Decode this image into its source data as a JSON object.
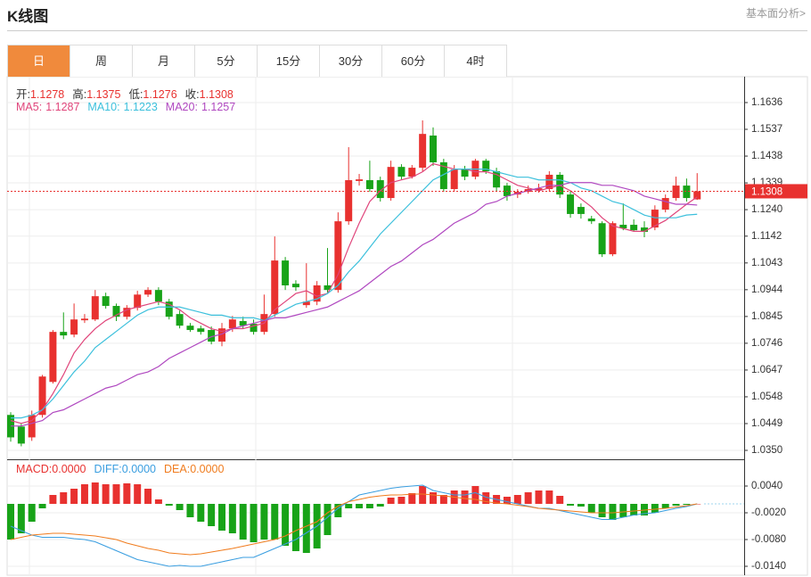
{
  "header": {
    "title": "K线图",
    "link": "基本面分析>"
  },
  "tabs": {
    "items": [
      "日",
      "周",
      "月",
      "5分",
      "15分",
      "30分",
      "60分",
      "4时"
    ],
    "active": 0
  },
  "chart_data": [
    {
      "type": "candlestick",
      "legend": [
        {
          "label": "开:",
          "value": "1.1278"
        },
        {
          "label": "高:",
          "value": "1.1375"
        },
        {
          "label": "低:",
          "value": "1.1276"
        },
        {
          "label": "收:",
          "value": "1.1308"
        }
      ],
      "up_color": "#e8312f",
      "down_color": "#18a318",
      "open": [
        1.0481,
        1.0438,
        1.0398,
        1.0481,
        1.0603,
        1.0788,
        1.0778,
        1.0831,
        1.0834,
        1.092,
        1.0884,
        1.0844,
        1.0877,
        1.0926,
        1.0943,
        1.09,
        1.0854,
        1.0811,
        1.0801,
        1.0795,
        1.0752,
        1.0801,
        1.0828,
        1.0818,
        1.0788,
        1.0854,
        1.1052,
        1.0966,
        1.0887,
        1.09,
        1.096,
        1.0943,
        1.1197,
        1.1346,
        1.1349,
        1.1349,
        1.1283,
        1.1398,
        1.1362,
        1.1395,
        1.1514,
        1.1415,
        1.1316,
        1.1389,
        1.1362,
        1.1421,
        1.1382,
        1.1329,
        1.1296,
        1.1306,
        1.1313,
        1.1316,
        1.1369,
        1.1296,
        1.125,
        1.1207,
        1.119,
        1.1075,
        1.1184,
        1.1184,
        1.1174,
        1.1174,
        1.124,
        1.1283,
        1.1329,
        1.1278
      ],
      "high": [
        1.0491,
        1.0448,
        1.0497,
        1.0629,
        1.0795,
        1.086,
        1.0893,
        1.0854,
        1.0943,
        1.0933,
        1.0893,
        1.0887,
        1.094,
        1.0953,
        1.0953,
        1.091,
        1.0867,
        1.0821,
        1.0811,
        1.0808,
        1.0821,
        1.0847,
        1.0844,
        1.0834,
        1.0926,
        1.1141,
        1.1065,
        1.0979,
        1.1042,
        1.0976,
        1.1098,
        1.123,
        1.1471,
        1.1372,
        1.1421,
        1.1362,
        1.1421,
        1.1408,
        1.1405,
        1.157,
        1.1544,
        1.1428,
        1.1405,
        1.1402,
        1.1428,
        1.1428,
        1.1395,
        1.1339,
        1.1316,
        1.1329,
        1.1336,
        1.1382,
        1.1379,
        1.1309,
        1.1263,
        1.1217,
        1.1197,
        1.1197,
        1.1263,
        1.1204,
        1.1197,
        1.1256,
        1.1296,
        1.1362,
        1.1355,
        1.1375
      ],
      "low": [
        1.0382,
        1.0365,
        1.0385,
        1.0471,
        1.0597,
        1.0761,
        1.0768,
        1.0821,
        1.0828,
        1.0874,
        1.0828,
        1.0834,
        1.0867,
        1.0917,
        1.0887,
        1.0834,
        1.0801,
        1.0788,
        1.0778,
        1.0742,
        1.0735,
        1.0788,
        1.0801,
        1.0778,
        1.0778,
        1.0844,
        1.0943,
        1.094,
        1.0877,
        1.0887,
        1.0933,
        1.0933,
        1.1184,
        1.1329,
        1.1306,
        1.127,
        1.1273,
        1.1352,
        1.1355,
        1.1382,
        1.1402,
        1.1306,
        1.1306,
        1.1349,
        1.1352,
        1.1372,
        1.1309,
        1.1273,
        1.1283,
        1.1299,
        1.1303,
        1.1306,
        1.1283,
        1.121,
        1.1207,
        1.1187,
        1.1065,
        1.1068,
        1.1164,
        1.1158,
        1.1138,
        1.1164,
        1.123,
        1.1273,
        1.127,
        1.1276
      ],
      "close": [
        1.0398,
        1.0375,
        1.0481,
        1.0623,
        1.0788,
        1.0775,
        1.0834,
        1.0837,
        1.092,
        1.0884,
        1.0844,
        1.0877,
        1.0926,
        1.0943,
        1.09,
        1.0844,
        1.0811,
        1.0795,
        1.0788,
        1.0752,
        1.0801,
        1.0834,
        1.0811,
        1.0788,
        1.0854,
        1.1052,
        1.096,
        1.0953,
        1.09,
        1.096,
        1.0943,
        1.1197,
        1.1349,
        1.1352,
        1.1316,
        1.1283,
        1.1398,
        1.1362,
        1.1395,
        1.152,
        1.1415,
        1.1316,
        1.1389,
        1.1362,
        1.1421,
        1.1382,
        1.1322,
        1.129,
        1.1306,
        1.1316,
        1.1319,
        1.1369,
        1.1296,
        1.1224,
        1.1224,
        1.1197,
        1.1075,
        1.119,
        1.1171,
        1.1164,
        1.1158,
        1.124,
        1.1283,
        1.1329,
        1.1283,
        1.1308
      ],
      "series": [
        {
          "legend_label": "MA5:",
          "legend_value": "1.1287",
          "color": "#e0457b",
          "values": [
            1.046,
            1.045,
            1.046,
            1.05,
            1.056,
            1.063,
            1.071,
            1.076,
            1.08,
            1.083,
            1.085,
            1.087,
            1.088,
            1.089,
            1.09,
            1.089,
            1.087,
            1.084,
            1.082,
            1.08,
            1.079,
            1.08,
            1.08,
            1.081,
            1.082,
            1.087,
            1.09,
            1.093,
            1.094,
            1.092,
            1.093,
            1.1,
            1.11,
            1.119,
            1.127,
            1.131,
            1.134,
            1.135,
            1.136,
            1.138,
            1.141,
            1.14,
            1.139,
            1.139,
            1.138,
            1.138,
            1.137,
            1.135,
            1.133,
            1.132,
            1.131,
            1.132,
            1.133,
            1.131,
            1.128,
            1.125,
            1.121,
            1.118,
            1.117,
            1.116,
            1.116,
            1.118,
            1.12,
            1.123,
            1.126,
            1.1287
          ]
        },
        {
          "legend_label": "MA10:",
          "legend_value": "1.1223",
          "color": "#3cc0dc",
          "values": [
            1.047,
            1.047,
            1.048,
            1.05,
            1.054,
            1.059,
            1.064,
            1.068,
            1.073,
            1.076,
            1.079,
            1.082,
            1.085,
            1.087,
            1.088,
            1.088,
            1.088,
            1.087,
            1.086,
            1.085,
            1.085,
            1.084,
            1.084,
            1.084,
            1.083,
            1.085,
            1.087,
            1.089,
            1.09,
            1.091,
            1.093,
            1.096,
            1.101,
            1.105,
            1.11,
            1.115,
            1.119,
            1.123,
            1.127,
            1.131,
            1.135,
            1.137,
            1.139,
            1.139,
            1.139,
            1.139,
            1.138,
            1.137,
            1.136,
            1.136,
            1.135,
            1.135,
            1.135,
            1.134,
            1.132,
            1.131,
            1.129,
            1.127,
            1.126,
            1.124,
            1.122,
            1.121,
            1.121,
            1.121,
            1.122,
            1.1223
          ]
        },
        {
          "legend_label": "MA20:",
          "legend_value": "1.1257",
          "color": "#b048c0",
          "values": [
            1.044,
            1.044,
            1.045,
            1.046,
            1.049,
            1.05,
            1.052,
            1.054,
            1.056,
            1.058,
            1.059,
            1.061,
            1.063,
            1.064,
            1.066,
            1.069,
            1.071,
            1.073,
            1.075,
            1.077,
            1.078,
            1.08,
            1.081,
            1.082,
            1.083,
            1.084,
            1.084,
            1.085,
            1.086,
            1.087,
            1.088,
            1.09,
            1.092,
            1.094,
            1.097,
            1.1,
            1.103,
            1.105,
            1.108,
            1.111,
            1.113,
            1.116,
            1.119,
            1.121,
            1.123,
            1.126,
            1.127,
            1.129,
            1.13,
            1.131,
            1.132,
            1.133,
            1.133,
            1.134,
            1.134,
            1.134,
            1.133,
            1.133,
            1.132,
            1.131,
            1.129,
            1.128,
            1.127,
            1.126,
            1.126,
            1.1257
          ]
        }
      ],
      "last_price": 1.1308,
      "ylim": [
        1.0317,
        1.1725
      ],
      "yticks": [
        1.1636,
        1.1537,
        1.1438,
        1.1339,
        {
          "value": 1.124,
          "label": "1.1240"
        },
        1.1142,
        1.1043,
        1.0944,
        1.0845,
        1.0746,
        1.0647,
        1.0548,
        1.0449,
        {
          "value": 1.035,
          "label": "1.0350"
        }
      ],
      "grid": true
    },
    {
      "type": "macd",
      "legend": [
        {
          "label": "MACD:",
          "value": "0.0000",
          "color": "#e8312f"
        },
        {
          "label": "DIFF:",
          "value": "0.0000",
          "color": "#3a9ee0"
        },
        {
          "label": "DEA:",
          "value": "0.0000",
          "color": "#f07c1e"
        }
      ],
      "up_color": "#e8312f",
      "down_color": "#18a318",
      "values": [
        -0.008,
        -0.0066,
        -0.004,
        -0.001,
        0.002,
        0.0026,
        0.0034,
        0.0044,
        0.0048,
        0.0044,
        0.0044,
        0.0046,
        0.0044,
        0.0034,
        0.001,
        -0.0004,
        -0.0014,
        -0.003,
        -0.004,
        -0.005,
        -0.006,
        -0.0066,
        -0.008,
        -0.0086,
        -0.008,
        -0.008,
        -0.0094,
        -0.0106,
        -0.011,
        -0.01,
        -0.007,
        -0.003,
        -0.001,
        -0.001,
        -0.001,
        -0.0006,
        0.0014,
        0.0016,
        0.0024,
        0.004,
        0.0026,
        0.002,
        0.003,
        0.003,
        0.004,
        0.0026,
        0.002,
        0.0016,
        0.002,
        0.0026,
        0.003,
        0.003,
        0.0018,
        -0.0004,
        -0.0006,
        -0.002,
        -0.003,
        -0.0036,
        -0.003,
        -0.0026,
        -0.0026,
        -0.002,
        -0.001,
        -0.0004,
        -0.0002,
        0
      ],
      "series": [
        {
          "color": "#3a9ee0",
          "values": [
            -0.005,
            -0.006,
            -0.007,
            -0.0075,
            -0.0075,
            -0.0075,
            -0.0078,
            -0.008,
            -0.0085,
            -0.0095,
            -0.0105,
            -0.0115,
            -0.0125,
            -0.013,
            -0.0135,
            -0.014,
            -0.0138,
            -0.014,
            -0.014,
            -0.0135,
            -0.013,
            -0.0125,
            -0.012,
            -0.012,
            -0.011,
            -0.01,
            -0.009,
            -0.008,
            -0.0065,
            -0.005,
            -0.003,
            -0.001,
            0.0005,
            0.002,
            0.0025,
            0.003,
            0.0035,
            0.0038,
            0.004,
            0.0042,
            0.003,
            0.0025,
            0.002,
            0.002,
            0.0025,
            0.0015,
            0.001,
            0.0005,
            0,
            -0.0005,
            -0.001,
            -0.001,
            -0.0015,
            -0.002,
            -0.0025,
            -0.003,
            -0.0035,
            -0.0035,
            -0.003,
            -0.0025,
            -0.0022,
            -0.002,
            -0.0015,
            -0.001,
            -0.0006,
            0
          ]
        },
        {
          "color": "#f07c1e",
          "values": [
            -0.008,
            -0.0075,
            -0.007,
            -0.0068,
            -0.0066,
            -0.0066,
            -0.0068,
            -0.007,
            -0.0072,
            -0.0076,
            -0.008,
            -0.0088,
            -0.0094,
            -0.01,
            -0.0104,
            -0.011,
            -0.0112,
            -0.0114,
            -0.0112,
            -0.0108,
            -0.0104,
            -0.01,
            -0.0095,
            -0.009,
            -0.0085,
            -0.008,
            -0.0072,
            -0.006,
            -0.005,
            -0.004,
            -0.002,
            -0.0005,
            0.0005,
            0.001,
            0.0015,
            0.0018,
            0.002,
            0.002,
            0.0022,
            0.0022,
            0.002,
            0.0018,
            0.0015,
            0.0012,
            0.001,
            0.0005,
            0.0002,
            0,
            -0.0003,
            -0.0006,
            -0.001,
            -0.0012,
            -0.0014,
            -0.0016,
            -0.0018,
            -0.002,
            -0.002,
            -0.002,
            -0.0018,
            -0.0016,
            -0.0014,
            -0.0012,
            -0.001,
            -0.0007,
            -0.0004,
            0
          ]
        }
      ],
      "ylim": [
        -0.016,
        0.0096
      ],
      "yticks": [
        {
          "value": 0.004,
          "label": "0.0040"
        },
        {
          "value": -0.002,
          "label": "-0.0020"
        },
        {
          "value": -0.008,
          "label": "-0.0080"
        },
        {
          "value": -0.014,
          "label": "-0.0140"
        }
      ],
      "grid": true
    }
  ]
}
